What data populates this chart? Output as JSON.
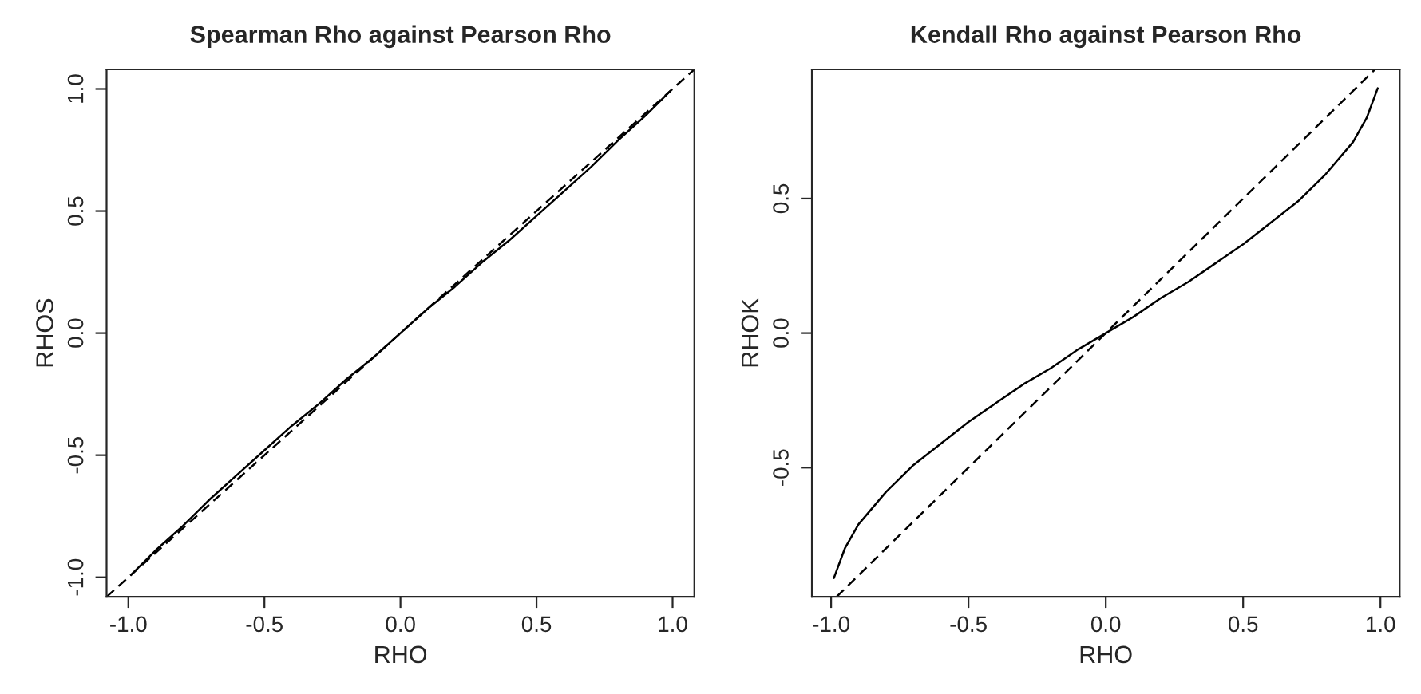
{
  "chart_data": [
    {
      "type": "line",
      "title": "Spearman Rho against Pearson Rho",
      "xlabel": "RHO",
      "ylabel": "RHOS",
      "xlim": [
        -1.08,
        1.08
      ],
      "ylim": [
        -1.08,
        1.08
      ],
      "xticks": [
        {
          "value": -1.0,
          "label": "-1.0"
        },
        {
          "value": -0.5,
          "label": "-0.5"
        },
        {
          "value": 0.0,
          "label": "0.0"
        },
        {
          "value": 0.5,
          "label": "0.5"
        },
        {
          "value": 1.0,
          "label": "1.0"
        }
      ],
      "yticks": [
        {
          "value": -1.0,
          "label": "-1.0"
        },
        {
          "value": -0.5,
          "label": "-0.5"
        },
        {
          "value": 0.0,
          "label": "0.0"
        },
        {
          "value": 0.5,
          "label": "0.5"
        },
        {
          "value": 1.0,
          "label": "1.0"
        }
      ],
      "series": [
        {
          "color": "#000000",
          "line_style": "solid",
          "x": [
            -0.99,
            -0.9,
            -0.8,
            -0.7,
            -0.6,
            -0.5,
            -0.4,
            -0.3,
            -0.2,
            -0.1,
            0.0,
            0.1,
            0.2,
            0.3,
            0.4,
            0.5,
            0.6,
            0.7,
            0.8,
            0.9,
            0.99
          ],
          "values": [
            -0.99,
            -0.89,
            -0.79,
            -0.68,
            -0.58,
            -0.48,
            -0.38,
            -0.29,
            -0.19,
            -0.1,
            0.0,
            0.1,
            0.19,
            0.29,
            0.38,
            0.48,
            0.58,
            0.68,
            0.79,
            0.89,
            0.99
          ]
        },
        {
          "color": "#000000",
          "line_style": "dashed",
          "x": [
            -1.08,
            1.08
          ],
          "values": [
            -1.08,
            1.08
          ]
        }
      ]
    },
    {
      "type": "line",
      "title": "Kendall Rho against Pearson Rho",
      "xlabel": "RHO",
      "ylabel": "RHOK",
      "xlim": [
        -1.07,
        1.07
      ],
      "ylim": [
        -0.98,
        0.98
      ],
      "xticks": [
        {
          "value": -1.0,
          "label": "-1.0"
        },
        {
          "value": -0.5,
          "label": "-0.5"
        },
        {
          "value": 0.0,
          "label": "0.0"
        },
        {
          "value": 0.5,
          "label": "0.5"
        },
        {
          "value": 1.0,
          "label": "1.0"
        }
      ],
      "yticks": [
        {
          "value": -0.5,
          "label": "-0.5"
        },
        {
          "value": 0.0,
          "label": "0.0"
        },
        {
          "value": 0.5,
          "label": "0.5"
        }
      ],
      "series": [
        {
          "color": "#000000",
          "line_style": "solid",
          "x": [
            -0.99,
            -0.95,
            -0.9,
            -0.8,
            -0.7,
            -0.6,
            -0.5,
            -0.4,
            -0.3,
            -0.2,
            -0.1,
            0.0,
            0.1,
            0.2,
            0.3,
            0.4,
            0.5,
            0.6,
            0.7,
            0.8,
            0.9,
            0.95,
            0.99
          ],
          "values": [
            -0.91,
            -0.8,
            -0.71,
            -0.59,
            -0.49,
            -0.41,
            -0.33,
            -0.26,
            -0.19,
            -0.13,
            -0.06,
            0.0,
            0.06,
            0.13,
            0.19,
            0.26,
            0.33,
            0.41,
            0.49,
            0.59,
            0.71,
            0.8,
            0.91
          ]
        },
        {
          "color": "#000000",
          "line_style": "dashed",
          "x": [
            -0.98,
            0.98
          ],
          "values": [
            -0.98,
            0.98
          ]
        }
      ]
    }
  ]
}
